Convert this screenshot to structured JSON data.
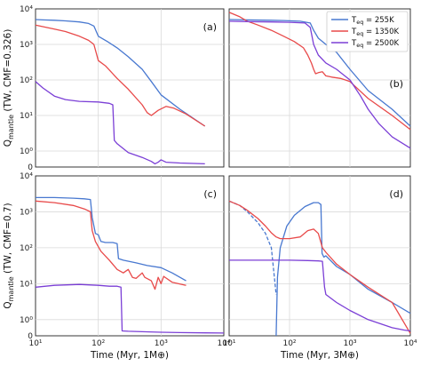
{
  "chart_data": [
    {
      "type": "line",
      "panel": "(a)",
      "xlabel": "",
      "ylabel": "Q_mantle (TW, CMF=0.326)",
      "x_scale": "log",
      "y_scale": "symlog",
      "xlim": [
        10,
        10000
      ],
      "ylim": [
        0,
        10000
      ],
      "yticks": [
        "0",
        "10^0",
        "10^1",
        "10^2",
        "10^3",
        "10^4"
      ],
      "grid": true,
      "series": [
        {
          "name": "T_eq = 255K",
          "color": "#4878d0",
          "points": [
            [
              10,
              5000
            ],
            [
              13,
              4900
            ],
            [
              20,
              4800
            ],
            [
              30,
              4600
            ],
            [
              50,
              4300
            ],
            [
              70,
              3900
            ],
            [
              85,
              3300
            ],
            [
              100,
              1700
            ],
            [
              140,
              1200
            ],
            [
              200,
              800
            ],
            [
              300,
              450
            ],
            [
              500,
              200
            ],
            [
              700,
              90
            ],
            [
              1000,
              38
            ],
            [
              2000,
              15
            ],
            [
              5000,
              5
            ]
          ]
        },
        {
          "name": "T_eq = 1350K",
          "color": "#e84a4a",
          "points": [
            [
              10,
              3500
            ],
            [
              15,
              3000
            ],
            [
              20,
              2700
            ],
            [
              30,
              2300
            ],
            [
              50,
              1700
            ],
            [
              70,
              1300
            ],
            [
              85,
              1000
            ],
            [
              100,
              350
            ],
            [
              130,
              250
            ],
            [
              200,
              110
            ],
            [
              300,
              55
            ],
            [
              500,
              20
            ],
            [
              600,
              12
            ],
            [
              700,
              10
            ],
            [
              900,
              14
            ],
            [
              1200,
              18
            ],
            [
              1600,
              16
            ],
            [
              2500,
              11
            ],
            [
              5000,
              5
            ]
          ]
        },
        {
          "name": "T_eq = 2500K",
          "color": "#7b3fd6",
          "points": [
            [
              10,
              90
            ],
            [
              13,
              60
            ],
            [
              20,
              35
            ],
            [
              30,
              28
            ],
            [
              50,
              25
            ],
            [
              100,
              24
            ],
            [
              150,
              22
            ],
            [
              170,
              20
            ],
            [
              180,
              2
            ],
            [
              200,
              1.6
            ],
            [
              300,
              0.9
            ],
            [
              500,
              0.6
            ],
            [
              700,
              0.35
            ],
            [
              800,
              0.2
            ],
            [
              900,
              0.3
            ],
            [
              1000,
              0.45
            ],
            [
              1200,
              0.3
            ],
            [
              2000,
              0.25
            ],
            [
              5000,
              0.2
            ]
          ]
        }
      ]
    },
    {
      "type": "line",
      "panel": "(b)",
      "xlabel": "",
      "ylabel": "",
      "x_scale": "log",
      "y_scale": "symlog",
      "xlim": [
        10,
        10000
      ],
      "ylim": [
        0,
        10000
      ],
      "grid": true,
      "series": [
        {
          "name": "T_eq = 255K",
          "color": "#4878d0",
          "points": [
            [
              10,
              5000
            ],
            [
              20,
              4900
            ],
            [
              50,
              4800
            ],
            [
              80,
              4700
            ],
            [
              150,
              4500
            ],
            [
              220,
              4000
            ],
            [
              250,
              2500
            ],
            [
              300,
              1500
            ],
            [
              400,
              1000
            ],
            [
              600,
              600
            ],
            [
              1000,
              200
            ],
            [
              2000,
              50
            ],
            [
              5000,
              15
            ],
            [
              10000,
              5
            ]
          ]
        },
        {
          "name": "T_eq = 1350K",
          "color": "#e84a4a",
          "points": [
            [
              10,
              8000
            ],
            [
              15,
              6000
            ],
            [
              20,
              4500
            ],
            [
              30,
              3500
            ],
            [
              50,
              2500
            ],
            [
              80,
              1700
            ],
            [
              120,
              1200
            ],
            [
              170,
              800
            ],
            [
              200,
              500
            ],
            [
              230,
              300
            ],
            [
              250,
              200
            ],
            [
              270,
              150
            ],
            [
              300,
              160
            ],
            [
              350,
              170
            ],
            [
              400,
              130
            ],
            [
              500,
              120
            ],
            [
              700,
              110
            ],
            [
              1000,
              90
            ],
            [
              2000,
              30
            ],
            [
              5000,
              10
            ],
            [
              10000,
              4
            ]
          ]
        },
        {
          "name": "T_eq = 2500K",
          "color": "#7b3fd6",
          "points": [
            [
              10,
              4500
            ],
            [
              20,
              4400
            ],
            [
              50,
              4300
            ],
            [
              100,
              4200
            ],
            [
              180,
              4000
            ],
            [
              220,
              3000
            ],
            [
              250,
              1000
            ],
            [
              300,
              500
            ],
            [
              400,
              300
            ],
            [
              600,
              200
            ],
            [
              1000,
              100
            ],
            [
              1500,
              35
            ],
            [
              2000,
              15
            ],
            [
              3000,
              6
            ],
            [
              5000,
              2.5
            ],
            [
              10000,
              1.2
            ]
          ]
        }
      ]
    },
    {
      "type": "line",
      "panel": "(c)",
      "xlabel": "Time (Myr, 1M⊕)",
      "ylabel": "Q_mantle (TW, CMF=0.7)",
      "x_scale": "log",
      "y_scale": "symlog",
      "xlim": [
        10,
        10000
      ],
      "ylim": [
        0,
        10000
      ],
      "yticks": [
        "0",
        "10^0",
        "10^1",
        "10^2",
        "10^3",
        "10^4"
      ],
      "xticks": [
        "10^1",
        "10^2",
        "10^3",
        "10^4"
      ],
      "grid": true,
      "series": [
        {
          "name": "T_eq = 255K",
          "color": "#4878d0",
          "points": [
            [
              10,
              2500
            ],
            [
              20,
              2500
            ],
            [
              40,
              2400
            ],
            [
              60,
              2300
            ],
            [
              75,
              2200
            ],
            [
              80,
              700
            ],
            [
              90,
              250
            ],
            [
              100,
              230
            ],
            [
              110,
              150
            ],
            [
              130,
              140
            ],
            [
              170,
              140
            ],
            [
              200,
              130
            ],
            [
              210,
              50
            ],
            [
              250,
              45
            ],
            [
              400,
              38
            ],
            [
              600,
              32
            ],
            [
              1000,
              28
            ],
            [
              1500,
              20
            ],
            [
              2500,
              12
            ]
          ]
        },
        {
          "name": "T_eq = 1350K",
          "color": "#e84a4a",
          "points": [
            [
              10,
              2000
            ],
            [
              20,
              1800
            ],
            [
              40,
              1500
            ],
            [
              60,
              1200
            ],
            [
              75,
              1000
            ],
            [
              80,
              300
            ],
            [
              90,
              150
            ],
            [
              110,
              80
            ],
            [
              150,
              45
            ],
            [
              200,
              25
            ],
            [
              250,
              20
            ],
            [
              300,
              25
            ],
            [
              350,
              15
            ],
            [
              400,
              14
            ],
            [
              500,
              20
            ],
            [
              550,
              15
            ],
            [
              700,
              12
            ],
            [
              800,
              7
            ],
            [
              900,
              15
            ],
            [
              1000,
              10
            ],
            [
              1100,
              16
            ],
            [
              1500,
              11
            ],
            [
              2500,
              9
            ]
          ]
        },
        {
          "name": "T_eq = 2500K",
          "color": "#7b3fd6",
          "points": [
            [
              10,
              8
            ],
            [
              20,
              9
            ],
            [
              50,
              9.5
            ],
            [
              100,
              9
            ],
            [
              150,
              8.5
            ],
            [
              200,
              8.5
            ],
            [
              230,
              8
            ],
            [
              240,
              0.3
            ],
            [
              300,
              0.28
            ],
            [
              500,
              0.25
            ],
            [
              1000,
              0.22
            ],
            [
              2000,
              0.2
            ],
            [
              5000,
              0.18
            ],
            [
              10000,
              0.17
            ]
          ]
        }
      ]
    },
    {
      "type": "line",
      "panel": "(d)",
      "xlabel": "Time (Myr, 3M⊕)",
      "ylabel": "",
      "x_scale": "log",
      "y_scale": "symlog",
      "xlim": [
        10,
        10000
      ],
      "ylim": [
        0,
        10000
      ],
      "xticks": [
        "10^1",
        "10^2",
        "10^3",
        "10^4"
      ],
      "grid": true,
      "series": [
        {
          "name": "T_eq = 255K",
          "color": "#4878d0",
          "points": [
            [
              10,
              2000
            ],
            [
              15,
              1500
            ],
            [
              20,
              1000
            ],
            [
              30,
              500
            ],
            [
              40,
              250
            ],
            [
              50,
              100
            ],
            [
              60,
              5
            ]
          ]
        },
        {
          "name": "T_eq = 255K",
          "color": "#4878d0",
          "points": [
            [
              60,
              0
            ],
            [
              63,
              15
            ],
            [
              70,
              100
            ],
            [
              90,
              400
            ],
            [
              120,
              800
            ],
            [
              180,
              1400
            ],
            [
              250,
              1800
            ],
            [
              300,
              1800
            ],
            [
              330,
              1600
            ],
            [
              345,
              70
            ],
            [
              370,
              55
            ],
            [
              400,
              60
            ],
            [
              600,
              30
            ],
            [
              1000,
              18
            ],
            [
              2000,
              7
            ],
            [
              5000,
              3
            ],
            [
              10000,
              1.5
            ]
          ]
        },
        {
          "name": "T_eq = 1350K",
          "color": "#e84a4a",
          "points": [
            [
              10,
              2000
            ],
            [
              15,
              1500
            ],
            [
              20,
              1100
            ],
            [
              30,
              650
            ],
            [
              40,
              400
            ],
            [
              50,
              260
            ],
            [
              60,
              200
            ],
            [
              70,
              180
            ],
            [
              100,
              180
            ],
            [
              150,
              200
            ],
            [
              200,
              300
            ],
            [
              250,
              330
            ],
            [
              300,
              250
            ],
            [
              350,
              100
            ],
            [
              400,
              75
            ],
            [
              600,
              35
            ],
            [
              1000,
              18
            ],
            [
              2000,
              8
            ],
            [
              5000,
              3
            ],
            [
              10000,
              0.15
            ]
          ]
        },
        {
          "name": "T_eq = 2500K",
          "color": "#7b3fd6",
          "points": [
            [
              10,
              45
            ],
            [
              30,
              45
            ],
            [
              100,
              45
            ],
            [
              200,
              44
            ],
            [
              300,
              43
            ],
            [
              350,
              42
            ],
            [
              380,
              8
            ],
            [
              400,
              5
            ],
            [
              600,
              3
            ],
            [
              1000,
              1.8
            ],
            [
              2000,
              1
            ],
            [
              5000,
              0.5
            ],
            [
              8000,
              0.35
            ],
            [
              10000,
              0.3
            ]
          ]
        }
      ]
    }
  ],
  "legend": {
    "placement": "top-right",
    "entries": [
      {
        "label": "T_eq = 255K",
        "color": "#4878d0"
      },
      {
        "label": "T_eq = 1350K",
        "color": "#e84a4a"
      },
      {
        "label": "T_eq = 2500K",
        "color": "#7b3fd6"
      }
    ]
  }
}
